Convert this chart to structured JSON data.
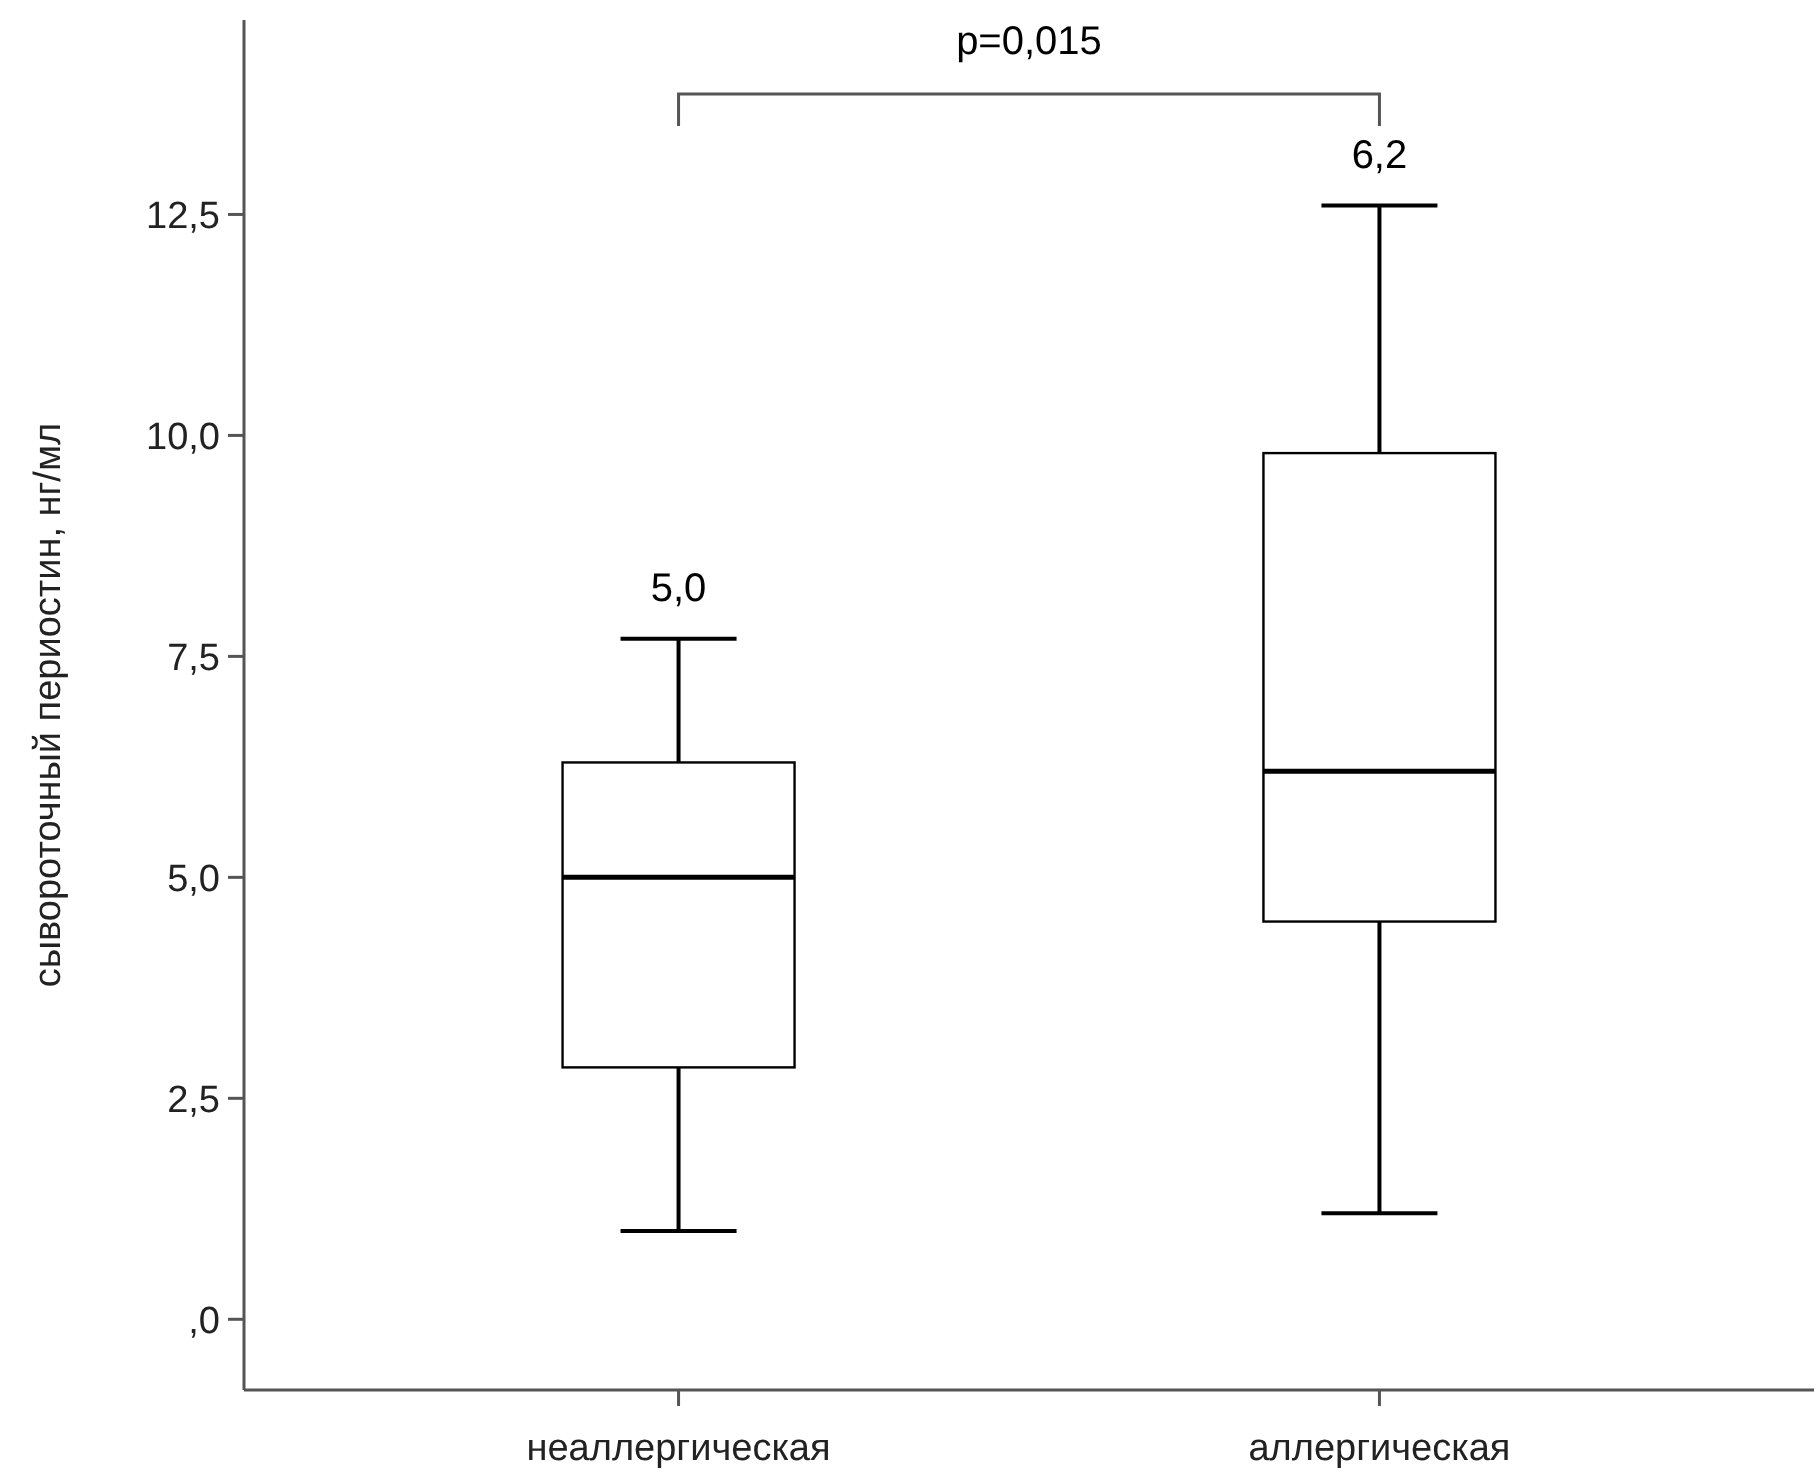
{
  "chart_data": {
    "type": "box",
    "ylabel": "сывороточный периостин, нг/мл",
    "categories": [
      "неаллергическая",
      "аллергическая"
    ],
    "boxes": [
      {
        "low": 1.0,
        "q1": 2.85,
        "median": 5.0,
        "q3": 6.3,
        "high": 7.7
      },
      {
        "low": 1.2,
        "q1": 4.5,
        "median": 6.2,
        "q3": 9.8,
        "high": 12.6
      }
    ],
    "ylim": [
      -0.8,
      14.7
    ],
    "yticks": [
      {
        "value": 0,
        "label": ",0"
      },
      {
        "value": 2.5,
        "label": "2,5"
      },
      {
        "value": 5,
        "label": "5,0"
      },
      {
        "value": 7.5,
        "label": "7,5"
      },
      {
        "value": 10,
        "label": "10,0"
      },
      {
        "value": 12.5,
        "label": "12,5"
      }
    ],
    "grid": false,
    "annotations": [
      "5,0",
      "6,2",
      "p=0,015"
    ]
  }
}
